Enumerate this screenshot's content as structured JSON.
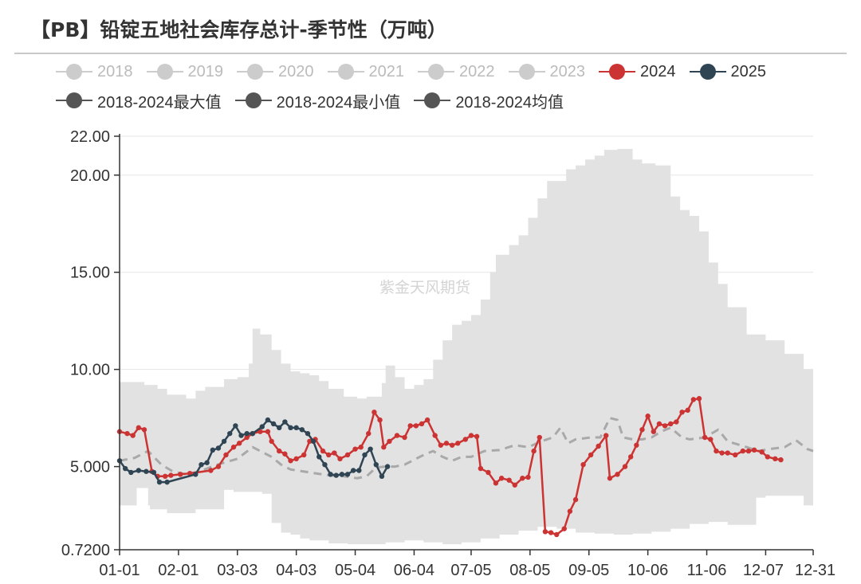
{
  "title": "【PB】铅锭五地社会库存总计-季节性（万吨）",
  "watermark": "紫金天风期货",
  "colors": {
    "band": "#e2e2e2",
    "avg": "#a9a9a9",
    "s2024": "#cc3333",
    "s2025": "#2f4554",
    "muted": "#cccccc",
    "minmax": "#555555",
    "grid": "#e5e5e5",
    "axis": "#333333"
  },
  "legend": [
    {
      "label": "2018",
      "state": "off"
    },
    {
      "label": "2019",
      "state": "off"
    },
    {
      "label": "2020",
      "state": "off"
    },
    {
      "label": "2021",
      "state": "off"
    },
    {
      "label": "2022",
      "state": "off"
    },
    {
      "label": "2023",
      "state": "off"
    },
    {
      "label": "2024",
      "state": "on"
    },
    {
      "label": "2025",
      "state": "on"
    },
    {
      "label": "2018-2024最大值",
      "state": "on"
    },
    {
      "label": "2018-2024最小值",
      "state": "on"
    },
    {
      "label": "2018-2024均值",
      "state": "on"
    }
  ],
  "chart_data": {
    "type": "line",
    "title": "【PB】铅锭五地社会库存总计-季节性（万吨）",
    "x_range_days": [
      0,
      365
    ],
    "y_range": [
      0.72,
      22.0
    ],
    "y_ticks": [
      {
        "value": 0.72,
        "label": "0.7200"
      },
      {
        "value": 5,
        "label": "5.000"
      },
      {
        "value": 10,
        "label": "10.00"
      },
      {
        "value": 15,
        "label": "15.00"
      },
      {
        "value": 20,
        "label": "20.00"
      },
      {
        "value": 22,
        "label": "22.00"
      }
    ],
    "x_ticks": [
      {
        "day": 0,
        "label": "01-01"
      },
      {
        "day": 31,
        "label": "02-01"
      },
      {
        "day": 62,
        "label": "03-03"
      },
      {
        "day": 93,
        "label": "04-03"
      },
      {
        "day": 124,
        "label": "05-04"
      },
      {
        "day": 155,
        "label": "06-04"
      },
      {
        "day": 185,
        "label": "07-05"
      },
      {
        "day": 216,
        "label": "08-05"
      },
      {
        "day": 247,
        "label": "09-05"
      },
      {
        "day": 278,
        "label": "10-06"
      },
      {
        "day": 309,
        "label": "11-06"
      },
      {
        "day": 340,
        "label": "12-07"
      },
      {
        "day": 365,
        "label": "12-31"
      }
    ],
    "band_max": [
      [
        0,
        9.35
      ],
      [
        10,
        9.35
      ],
      [
        13,
        9.2
      ],
      [
        20,
        9.0
      ],
      [
        25,
        8.7
      ],
      [
        35,
        8.5
      ],
      [
        40,
        8.9
      ],
      [
        45,
        9.1
      ],
      [
        55,
        9.5
      ],
      [
        62,
        9.6
      ],
      [
        68,
        10.3
      ],
      [
        70,
        12.1
      ],
      [
        74,
        11.8
      ],
      [
        80,
        11.0
      ],
      [
        85,
        10.3
      ],
      [
        90,
        9.9
      ],
      [
        95,
        9.8
      ],
      [
        100,
        9.7
      ],
      [
        105,
        9.4
      ],
      [
        110,
        9.0
      ],
      [
        118,
        8.6
      ],
      [
        125,
        8.5
      ],
      [
        130,
        8.6
      ],
      [
        138,
        9.3
      ],
      [
        140,
        10.2
      ],
      [
        145,
        9.6
      ],
      [
        150,
        9.0
      ],
      [
        155,
        9.2
      ],
      [
        160,
        9.5
      ],
      [
        165,
        10.5
      ],
      [
        170,
        11.5
      ],
      [
        175,
        12.3
      ],
      [
        180,
        12.5
      ],
      [
        185,
        12.8
      ],
      [
        190,
        13.6
      ],
      [
        195,
        15.0
      ],
      [
        198,
        15.9
      ],
      [
        205,
        16.4
      ],
      [
        210,
        16.9
      ],
      [
        215,
        17.8
      ],
      [
        220,
        18.8
      ],
      [
        225,
        19.7
      ],
      [
        235,
        20.3
      ],
      [
        240,
        20.5
      ],
      [
        245,
        20.8
      ],
      [
        250,
        21.0
      ],
      [
        255,
        21.3
      ],
      [
        262,
        21.35
      ],
      [
        270,
        20.8
      ],
      [
        275,
        20.6
      ],
      [
        282,
        20.5
      ],
      [
        290,
        18.9
      ],
      [
        295,
        18.2
      ],
      [
        300,
        17.9
      ],
      [
        305,
        17.1
      ],
      [
        310,
        15.5
      ],
      [
        315,
        14.4
      ],
      [
        320,
        13.2
      ],
      [
        330,
        11.8
      ],
      [
        340,
        11.5
      ],
      [
        350,
        10.8
      ],
      [
        360,
        10.0
      ],
      [
        365,
        9.9
      ]
    ],
    "band_min": [
      [
        0,
        3.0
      ],
      [
        9,
        3.0
      ],
      [
        10,
        3.9
      ],
      [
        15,
        3.9
      ],
      [
        16,
        3.0
      ],
      [
        25,
        2.8
      ],
      [
        40,
        2.6
      ],
      [
        55,
        2.8
      ],
      [
        60,
        3.8
      ],
      [
        70,
        3.7
      ],
      [
        75,
        3.7
      ],
      [
        80,
        3.6
      ],
      [
        85,
        2.1
      ],
      [
        90,
        1.6
      ],
      [
        95,
        1.5
      ],
      [
        100,
        1.3
      ],
      [
        110,
        1.2
      ],
      [
        120,
        1.05
      ],
      [
        130,
        1.0
      ],
      [
        140,
        1.0
      ],
      [
        150,
        1.1
      ],
      [
        160,
        1.2
      ],
      [
        170,
        1.1
      ],
      [
        180,
        1.0
      ],
      [
        190,
        1.1
      ],
      [
        200,
        1.3
      ],
      [
        210,
        1.5
      ],
      [
        220,
        1.7
      ],
      [
        230,
        1.9
      ],
      [
        240,
        1.8
      ],
      [
        250,
        1.6
      ],
      [
        260,
        1.55
      ],
      [
        270,
        1.5
      ],
      [
        280,
        1.55
      ],
      [
        290,
        1.65
      ],
      [
        300,
        1.8
      ],
      [
        310,
        2.05
      ],
      [
        320,
        2.15
      ],
      [
        330,
        2.0
      ],
      [
        335,
        2.0
      ],
      [
        340,
        3.4
      ],
      [
        350,
        3.5
      ],
      [
        360,
        3.5
      ],
      [
        362,
        3.0
      ],
      [
        365,
        3.0
      ]
    ],
    "series": [
      {
        "name": "2018-2024均值",
        "style": "dashed",
        "points": [
          [
            0,
            5.3
          ],
          [
            8,
            5.45
          ],
          [
            15,
            5.8
          ],
          [
            22,
            5.1
          ],
          [
            28,
            4.75
          ],
          [
            35,
            4.6
          ],
          [
            42,
            4.75
          ],
          [
            50,
            5.05
          ],
          [
            55,
            5.2
          ],
          [
            62,
            5.4
          ],
          [
            70,
            6.0
          ],
          [
            75,
            5.75
          ],
          [
            80,
            5.5
          ],
          [
            85,
            5.1
          ],
          [
            90,
            4.85
          ],
          [
            100,
            4.7
          ],
          [
            110,
            4.55
          ],
          [
            118,
            4.5
          ],
          [
            125,
            4.4
          ],
          [
            130,
            4.5
          ],
          [
            135,
            4.95
          ],
          [
            140,
            5.0
          ],
          [
            145,
            5.0
          ],
          [
            150,
            5.1
          ],
          [
            155,
            5.35
          ],
          [
            160,
            5.6
          ],
          [
            165,
            5.8
          ],
          [
            170,
            5.5
          ],
          [
            175,
            5.3
          ],
          [
            180,
            5.5
          ],
          [
            185,
            5.5
          ],
          [
            192,
            5.8
          ],
          [
            200,
            5.85
          ],
          [
            208,
            6.1
          ],
          [
            215,
            6.0
          ],
          [
            222,
            6.3
          ],
          [
            228,
            6.5
          ],
          [
            232,
            7.0
          ],
          [
            236,
            6.2
          ],
          [
            240,
            6.4
          ],
          [
            248,
            6.5
          ],
          [
            253,
            6.5
          ],
          [
            258,
            7.5
          ],
          [
            262,
            7.4
          ],
          [
            265,
            6.5
          ],
          [
            270,
            6.4
          ],
          [
            275,
            6.4
          ],
          [
            280,
            6.5
          ],
          [
            285,
            6.8
          ],
          [
            290,
            7.0
          ],
          [
            296,
            6.5
          ],
          [
            300,
            6.4
          ],
          [
            308,
            6.5
          ],
          [
            315,
            6.9
          ],
          [
            320,
            6.3
          ],
          [
            330,
            6.0
          ],
          [
            336,
            5.8
          ],
          [
            342,
            5.9
          ],
          [
            350,
            6.0
          ],
          [
            356,
            6.35
          ],
          [
            362,
            5.9
          ],
          [
            365,
            5.8
          ]
        ]
      },
      {
        "name": "2024",
        "style": "solid",
        "points": [
          [
            0,
            6.8
          ],
          [
            4,
            6.7
          ],
          [
            7,
            6.6
          ],
          [
            10,
            7.0
          ],
          [
            13,
            6.9
          ],
          [
            17,
            4.75
          ],
          [
            20,
            4.5
          ],
          [
            24,
            4.5
          ],
          [
            27,
            4.55
          ],
          [
            32,
            4.6
          ],
          [
            37,
            4.65
          ],
          [
            48,
            4.8
          ],
          [
            52,
            5.0
          ],
          [
            56,
            5.6
          ],
          [
            60,
            6.0
          ],
          [
            63,
            6.2
          ],
          [
            67,
            6.5
          ],
          [
            70,
            6.7
          ],
          [
            74,
            6.8
          ],
          [
            78,
            6.8
          ],
          [
            80,
            6.3
          ],
          [
            84,
            5.8
          ],
          [
            87,
            5.65
          ],
          [
            90,
            5.3
          ],
          [
            93,
            5.4
          ],
          [
            97,
            5.6
          ],
          [
            100,
            6.3
          ],
          [
            103,
            6.4
          ],
          [
            107,
            5.8
          ],
          [
            110,
            5.6
          ],
          [
            113,
            5.7
          ],
          [
            116,
            5.4
          ],
          [
            120,
            5.6
          ],
          [
            124,
            5.9
          ],
          [
            127,
            6.0
          ],
          [
            131,
            6.7
          ],
          [
            134,
            7.8
          ],
          [
            137,
            7.4
          ],
          [
            139,
            6.0
          ],
          [
            142,
            6.3
          ],
          [
            146,
            6.6
          ],
          [
            150,
            6.5
          ],
          [
            153,
            7.1
          ],
          [
            156,
            7.1
          ],
          [
            159,
            7.2
          ],
          [
            162,
            7.4
          ],
          [
            166,
            6.6
          ],
          [
            169,
            6.1
          ],
          [
            172,
            6.2
          ],
          [
            175,
            6.1
          ],
          [
            178,
            6.2
          ],
          [
            182,
            6.4
          ],
          [
            185,
            6.6
          ],
          [
            188,
            6.55
          ],
          [
            190,
            4.9
          ],
          [
            194,
            4.7
          ],
          [
            198,
            4.15
          ],
          [
            201,
            4.4
          ],
          [
            205,
            4.3
          ],
          [
            208,
            4.05
          ],
          [
            212,
            4.4
          ],
          [
            215,
            4.45
          ],
          [
            218,
            5.8
          ],
          [
            221,
            6.5
          ],
          [
            224,
            1.65
          ],
          [
            227,
            1.6
          ],
          [
            230,
            1.5
          ],
          [
            234,
            1.8
          ],
          [
            237,
            2.7
          ],
          [
            240,
            3.3
          ],
          [
            244,
            5.1
          ],
          [
            248,
            5.6
          ],
          [
            252,
            6.05
          ],
          [
            256,
            6.6
          ],
          [
            258,
            4.4
          ],
          [
            262,
            4.6
          ],
          [
            266,
            5.0
          ],
          [
            269,
            5.5
          ],
          [
            272,
            6.1
          ],
          [
            275,
            6.9
          ],
          [
            278,
            7.6
          ],
          [
            281,
            6.8
          ],
          [
            284,
            7.2
          ],
          [
            287,
            7.1
          ],
          [
            290,
            7.2
          ],
          [
            293,
            7.3
          ],
          [
            296,
            7.8
          ],
          [
            299,
            7.9
          ],
          [
            302,
            8.45
          ],
          [
            305,
            8.5
          ],
          [
            308,
            6.5
          ],
          [
            311,
            6.4
          ],
          [
            314,
            5.8
          ],
          [
            317,
            5.7
          ],
          [
            320,
            5.7
          ],
          [
            324,
            5.6
          ],
          [
            328,
            5.8
          ],
          [
            331,
            5.8
          ],
          [
            334,
            5.85
          ],
          [
            338,
            5.75
          ],
          [
            341,
            5.5
          ],
          [
            345,
            5.4
          ],
          [
            348,
            5.35
          ]
        ]
      },
      {
        "name": "2025",
        "style": "solid",
        "points": [
          [
            0,
            5.3
          ],
          [
            3,
            4.9
          ],
          [
            6,
            4.7
          ],
          [
            10,
            4.8
          ],
          [
            14,
            4.75
          ],
          [
            18,
            4.7
          ],
          [
            21,
            4.2
          ],
          [
            25,
            4.2
          ],
          [
            40,
            4.6
          ],
          [
            43,
            5.1
          ],
          [
            46,
            5.2
          ],
          [
            49,
            5.85
          ],
          [
            52,
            5.95
          ],
          [
            55,
            6.3
          ],
          [
            58,
            6.7
          ],
          [
            61,
            7.1
          ],
          [
            64,
            6.6
          ],
          [
            67,
            6.7
          ],
          [
            70,
            6.7
          ],
          [
            75,
            7.05
          ],
          [
            78,
            7.4
          ],
          [
            81,
            7.2
          ],
          [
            84,
            7.0
          ],
          [
            87,
            7.3
          ],
          [
            90,
            7.0
          ],
          [
            93,
            7.0
          ],
          [
            96,
            6.9
          ],
          [
            99,
            6.7
          ],
          [
            102,
            6.3
          ],
          [
            105,
            5.5
          ],
          [
            108,
            5.1
          ],
          [
            111,
            4.6
          ],
          [
            114,
            4.55
          ],
          [
            117,
            4.6
          ],
          [
            120,
            4.6
          ],
          [
            123,
            4.8
          ],
          [
            126,
            4.8
          ],
          [
            129,
            5.6
          ],
          [
            132,
            5.9
          ],
          [
            135,
            5.1
          ],
          [
            138,
            4.5
          ],
          [
            141,
            5.0
          ]
        ]
      }
    ]
  }
}
